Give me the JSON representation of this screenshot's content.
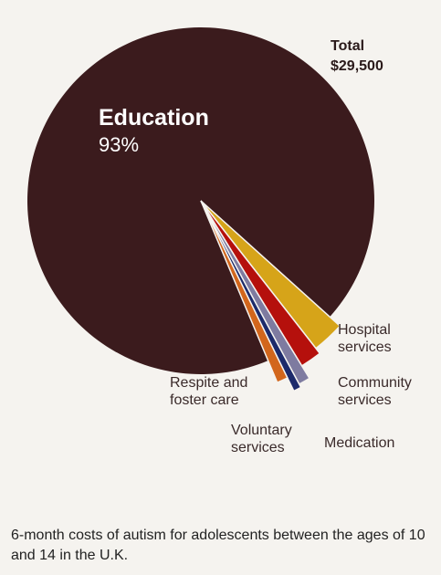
{
  "chart_data": {
    "type": "pie",
    "categories": [
      "Education",
      "Hospital services",
      "Community services",
      "Medication",
      "Voluntary services",
      "Respite and foster care"
    ],
    "values": [
      93,
      2.8,
      1.8,
      0.9,
      0.6,
      0.9
    ],
    "value_labels": [
      "93%",
      null,
      null,
      null,
      null,
      null
    ],
    "colors": [
      "#3b1b1d",
      "#d6a419",
      "#b5100c",
      "#7e7ba0",
      "#1c2a6b",
      "#d2661c"
    ],
    "annotations": [
      "Total",
      "$29,500"
    ],
    "caption": "6-month costs of autism for adolescents between the ages of 10 and 14 in the U.K."
  }
}
